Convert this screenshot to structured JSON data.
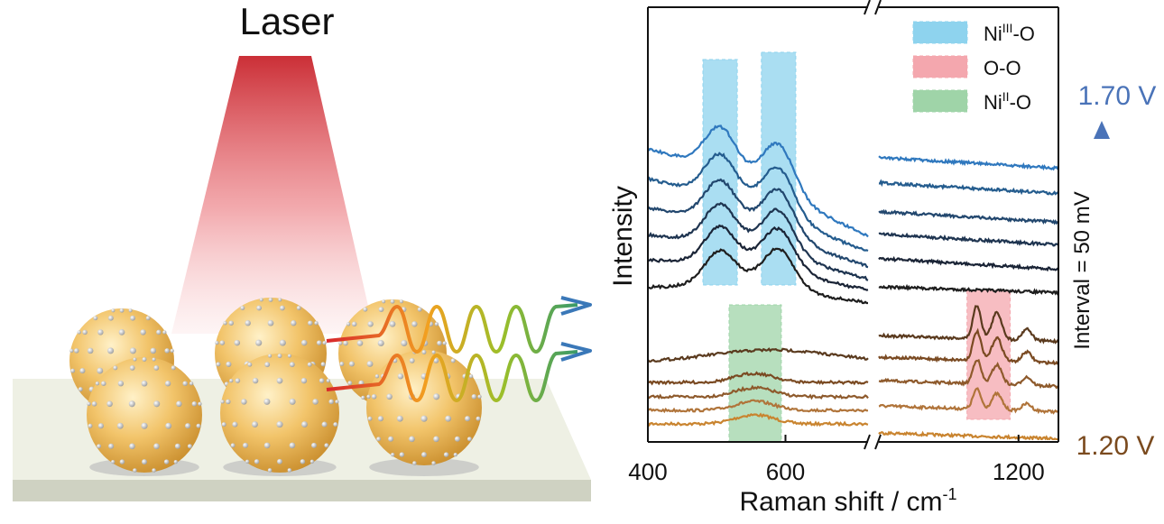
{
  "left_figure": {
    "laser_label": "Laser"
  },
  "chart_data": {
    "type": "line",
    "xlabel": "Raman shift / cm",
    "xlabel_superscript": "-1",
    "ylabel": "Intensity",
    "x_axis": {
      "broken": true,
      "segment_1": {
        "range": [
          400,
          720
        ],
        "ticks": [
          400,
          600
        ]
      },
      "segment_2": {
        "range": [
          780,
          1320
        ],
        "ticks": [
          1200
        ]
      }
    },
    "legend": {
      "placement": "top-right",
      "entries": [
        {
          "base": "Ni",
          "sup": "III",
          "suffix": "-O",
          "color": "#8ed3ee"
        },
        {
          "base": "O-O",
          "sup": "",
          "suffix": "",
          "color": "#f4a7ae"
        },
        {
          "base": "Ni",
          "sup": "II",
          "suffix": "-O",
          "color": "#9fd4a8"
        }
      ]
    },
    "bands": [
      {
        "label": "Ni(III)-O",
        "x_range": [
          480,
          530
        ],
        "color": "#8ed3ee"
      },
      {
        "label": "Ni(III)-O",
        "x_range": [
          565,
          615
        ],
        "color": "#8ed3ee"
      },
      {
        "label": "Ni(II)-O",
        "x_range": [
          518,
          594
        ],
        "color": "#9fd4a8"
      },
      {
        "label": "O-O",
        "x_range": [
          1045,
          1175
        ],
        "color": "#f4a7ae"
      }
    ],
    "potential_axis": {
      "top_label": "1.70 V",
      "bottom_label": "1.20 V",
      "interval_label": "Interval = 50 mV",
      "top_color": "#4a73b8",
      "bottom_color": "#7a4a1e"
    },
    "series_order_note": "11 spectra from 1.20 V (bottom) to 1.70 V (top)",
    "series": [
      {
        "potential": 1.2,
        "color": "#c9842f",
        "oo_peaks": false,
        "ni3": false,
        "ni2": true
      },
      {
        "potential": 1.25,
        "color": "#b0743a",
        "oo_peaks": true,
        "ni3": false,
        "ni2": true
      },
      {
        "potential": 1.3,
        "color": "#8e5a2c",
        "oo_peaks": true,
        "ni3": false,
        "ni2": true
      },
      {
        "potential": 1.35,
        "color": "#7a4a22",
        "oo_peaks": true,
        "ni3": false,
        "ni2": true
      },
      {
        "potential": 1.4,
        "color": "#5a3a1e",
        "oo_peaks": true,
        "ni3": false,
        "ni2": false
      },
      {
        "potential": 1.45,
        "color": "#1e1e1e",
        "oo_peaks": false,
        "ni3": true,
        "ni2": false
      },
      {
        "potential": 1.5,
        "color": "#1a2436",
        "oo_peaks": false,
        "ni3": true,
        "ni2": false
      },
      {
        "potential": 1.55,
        "color": "#1e3450",
        "oo_peaks": false,
        "ni3": true,
        "ni2": false
      },
      {
        "potential": 1.6,
        "color": "#22476e",
        "oo_peaks": false,
        "ni3": true,
        "ni2": false
      },
      {
        "potential": 1.65,
        "color": "#245c8e",
        "oo_peaks": false,
        "ni3": true,
        "ni2": false
      },
      {
        "potential": 1.7,
        "color": "#2f78be",
        "oo_peaks": false,
        "ni3": true,
        "ni2": false
      }
    ]
  }
}
